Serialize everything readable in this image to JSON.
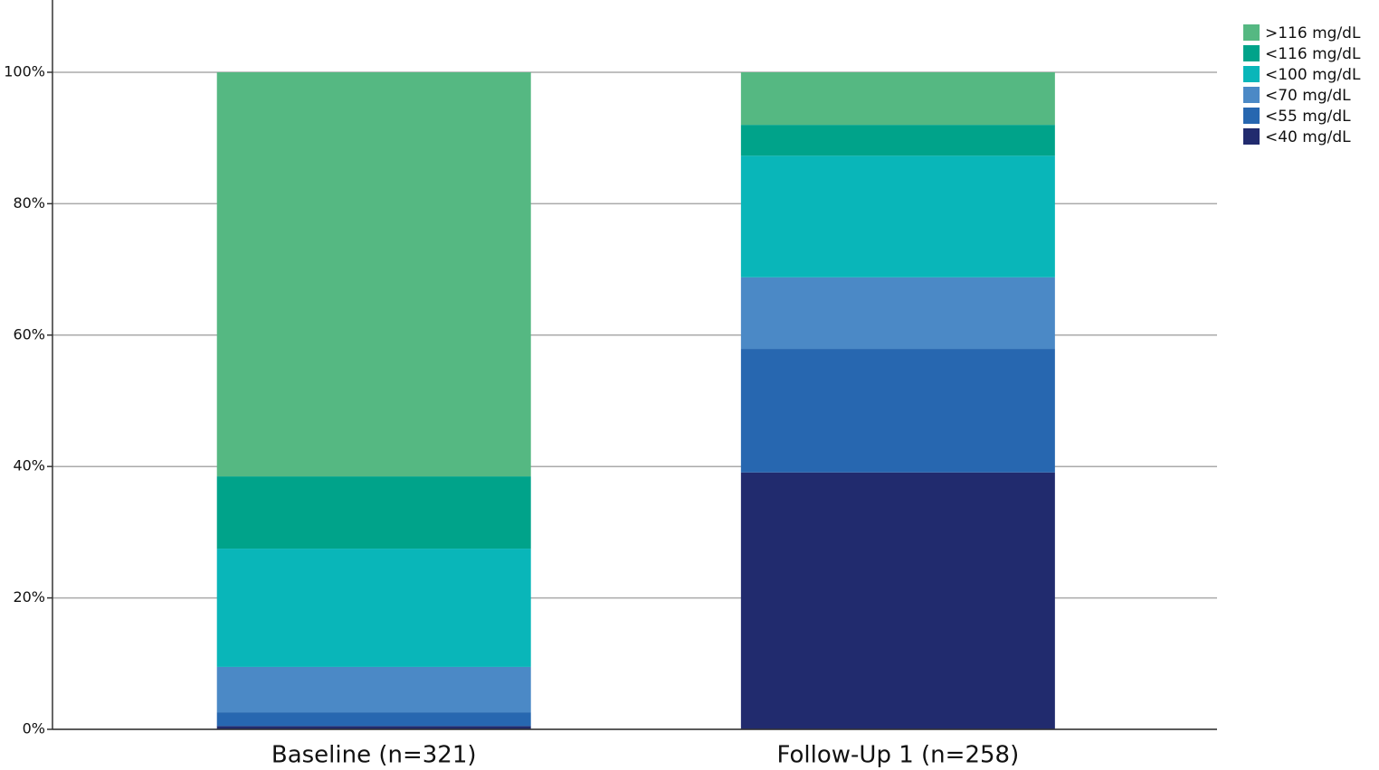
{
  "chart_data": {
    "type": "stacked_bar",
    "categories": [
      "Baseline (n=321)",
      "Follow-Up 1 (n=258)"
    ],
    "series": [
      {
        "name": "<40 mg/dL",
        "color": "#212b6e",
        "values": [
          0.5,
          39.1
        ]
      },
      {
        "name": "<55 mg/dL",
        "color": "#2767b0",
        "values": [
          2.1,
          18.8
        ]
      },
      {
        "name": "<70 mg/dL",
        "color": "#4b89c6",
        "values": [
          6.9,
          10.9
        ]
      },
      {
        "name": "<100 mg/dL",
        "color": "#09b6b9",
        "values": [
          18.0,
          18.5
        ]
      },
      {
        "name": "<116 mg/dL",
        "color": "#00a38a",
        "values": [
          11.0,
          4.7
        ]
      },
      {
        "name": ">116 mg/dL",
        "color": "#55b882",
        "values": [
          61.5,
          8.0
        ]
      }
    ],
    "ylim": [
      0,
      111
    ],
    "yticks": [
      {
        "value": 0,
        "label": "0%"
      },
      {
        "value": 20,
        "label": "20%"
      },
      {
        "value": 40,
        "label": "40%"
      },
      {
        "value": 60,
        "label": "60%"
      },
      {
        "value": 80,
        "label": "80%"
      },
      {
        "value": 100,
        "label": "100%"
      }
    ],
    "grid": true,
    "legend": "top-right"
  }
}
